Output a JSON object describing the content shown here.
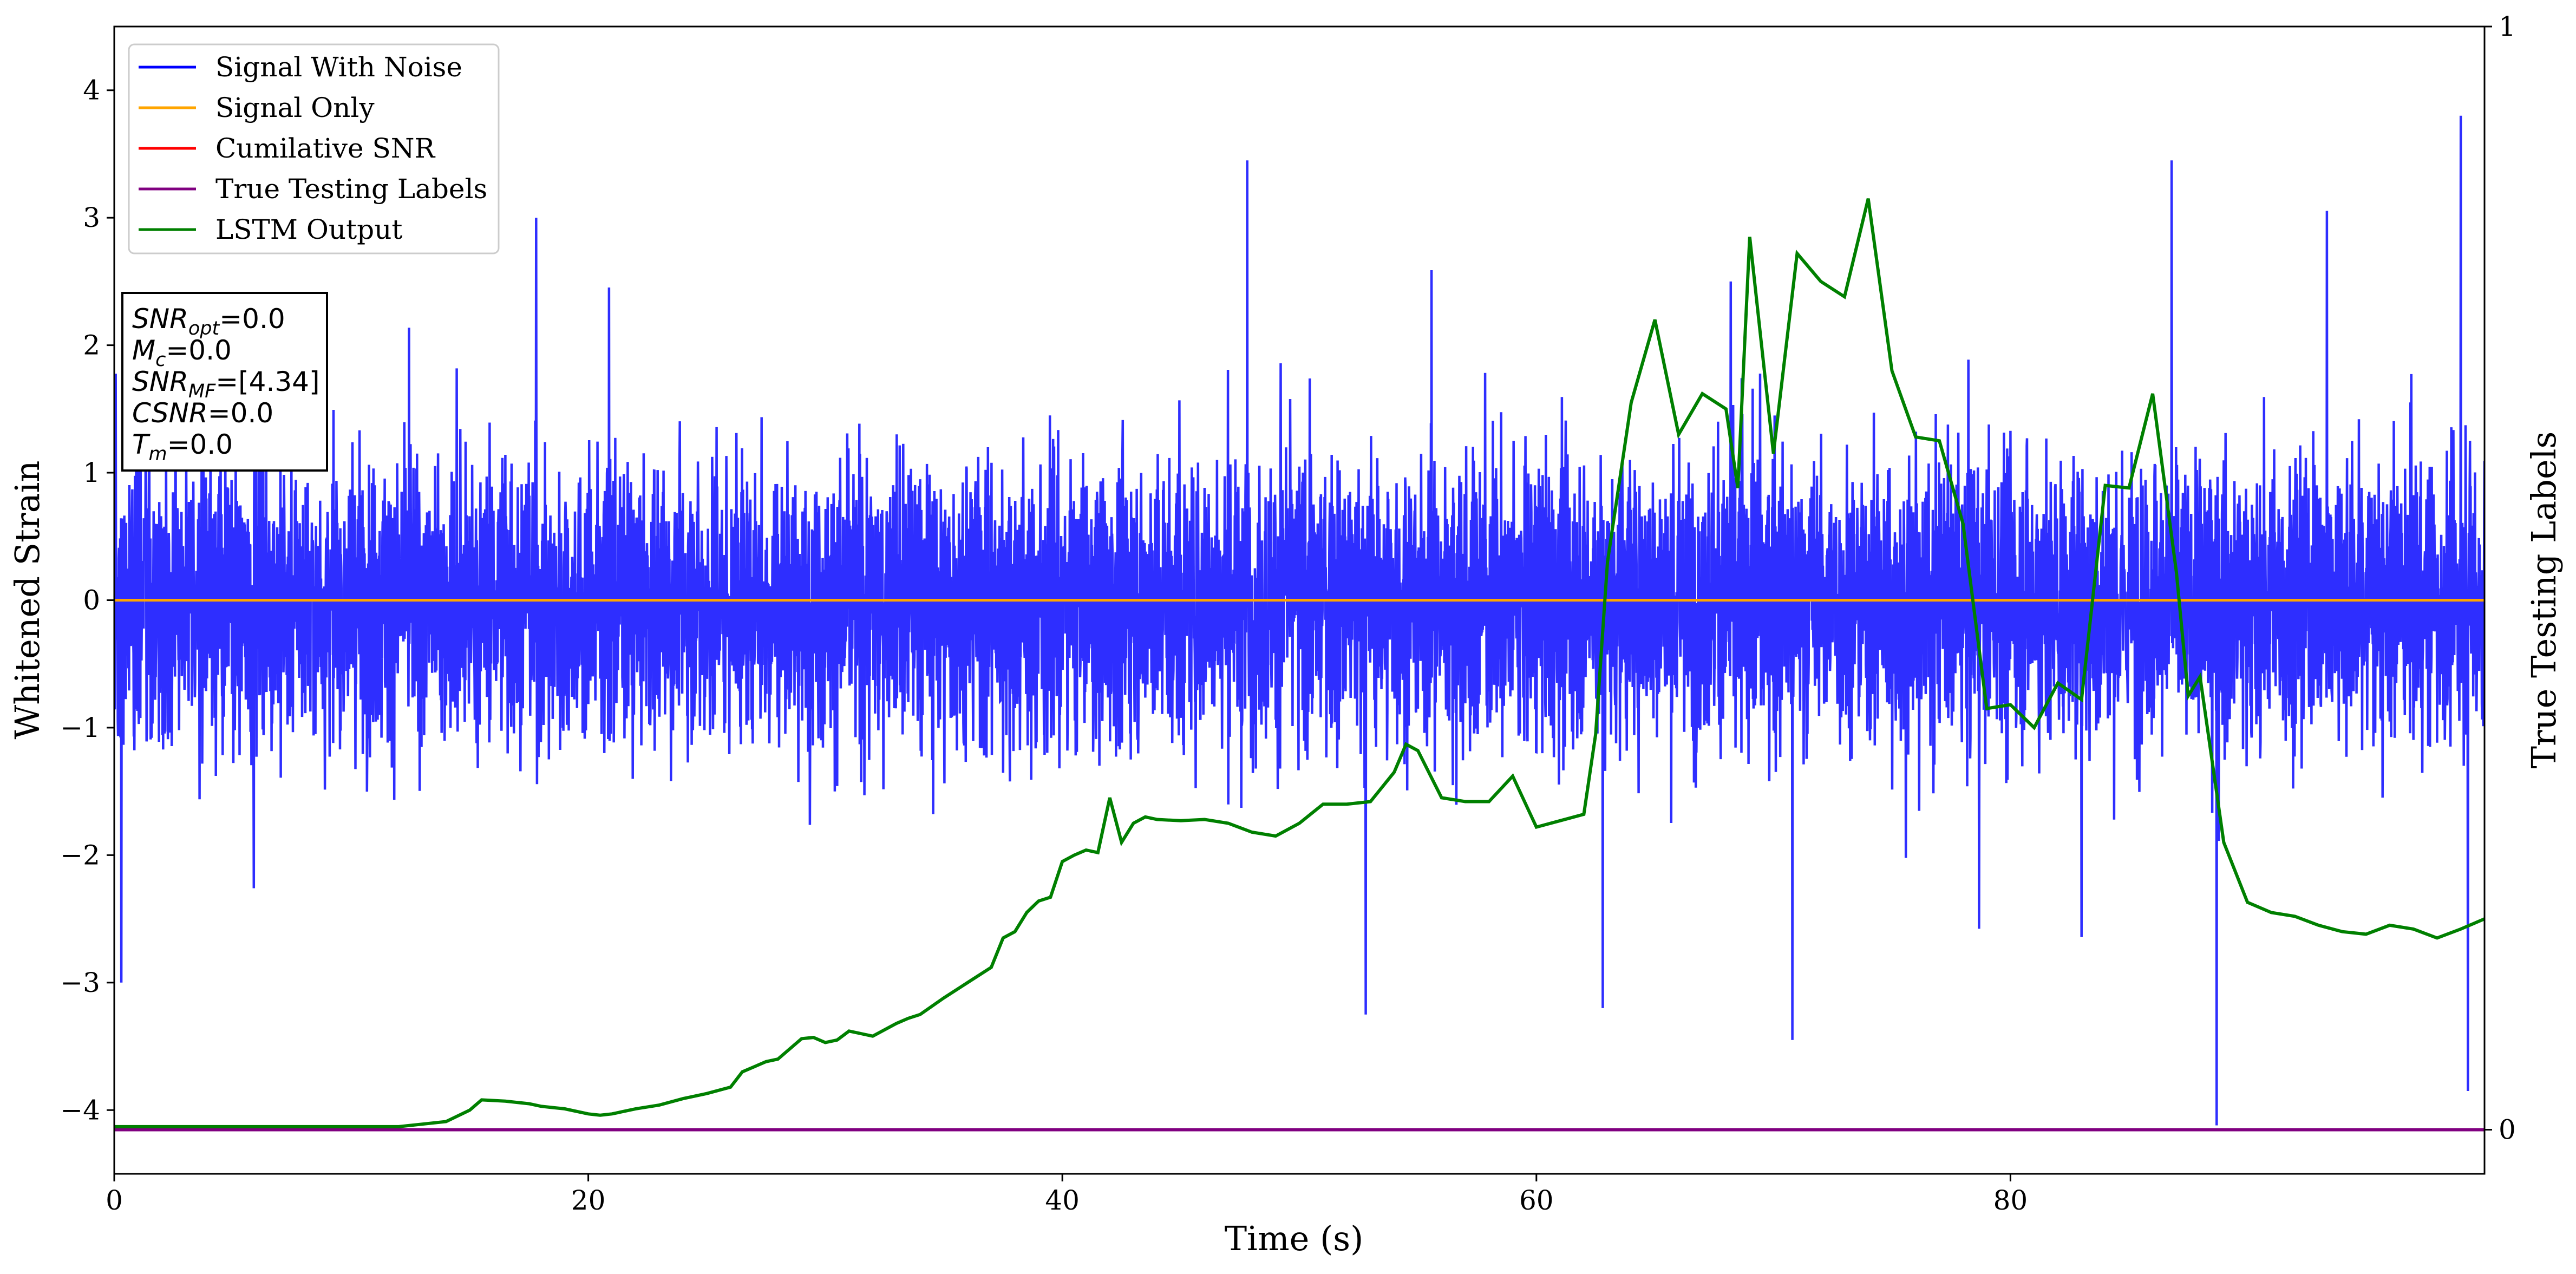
{
  "colors": {
    "noise": "#0000ff",
    "signal": "#ffa500",
    "csnr": "#ff0000",
    "labels": "#800080",
    "lstm": "#008000"
  },
  "chart_data": {
    "type": "line",
    "xlabel": "Time (s)",
    "ylabel": "Whitened Strain",
    "ylabel_right": "True Testing Labels",
    "xlim": [
      0,
      100
    ],
    "ylim": [
      -4.5,
      4.5
    ],
    "ylim_right": [
      -0.04,
      1.0
    ],
    "xticks": [
      0,
      20,
      40,
      60,
      80
    ],
    "yticks": [
      -4,
      -3,
      -2,
      -1,
      0,
      1,
      2,
      3,
      4
    ],
    "yticks_right": [
      0,
      1
    ],
    "grid": false,
    "legend_position": "top-left",
    "series": [
      {
        "name": "Signal With Noise",
        "color": "#0000ff",
        "axis": "left",
        "style": "dense noise, amplitude roughly ±1.5 with spikes to ±3.5",
        "notable_values": [
          {
            "x": 0.3,
            "y": -3.0
          },
          {
            "x": 17.8,
            "y": 3.0
          },
          {
            "x": 47.8,
            "y": 3.45
          },
          {
            "x": 52.8,
            "y": -3.25
          },
          {
            "x": 62.8,
            "y": -3.2
          },
          {
            "x": 68.2,
            "y": 2.5
          },
          {
            "x": 70.8,
            "y": -3.45
          },
          {
            "x": 86.8,
            "y": 3.45
          },
          {
            "x": 88.7,
            "y": -4.12
          },
          {
            "x": 99.0,
            "y": 3.8
          },
          {
            "x": 99.3,
            "y": -3.85
          }
        ]
      },
      {
        "name": "Signal Only",
        "color": "#ffa500",
        "axis": "left",
        "x": [
          0,
          100
        ],
        "y": [
          0,
          0
        ]
      },
      {
        "name": "Cumilative SNR",
        "color": "#ff0000",
        "axis": "left",
        "x": [],
        "y": []
      },
      {
        "name": "True Testing Labels",
        "color": "#800080",
        "axis": "right",
        "x": [
          0,
          100
        ],
        "y": [
          0,
          0
        ]
      },
      {
        "name": "LSTM Output",
        "color": "#008000",
        "axis": "left",
        "x": [
          0,
          5,
          10,
          12,
          13,
          14,
          15,
          15.5,
          16.5,
          17.5,
          18,
          18.5,
          19,
          20,
          20.5,
          21,
          22,
          23,
          24,
          25,
          26,
          26.5,
          27.5,
          28,
          29,
          29.5,
          30,
          30.5,
          31,
          31.5,
          32,
          33,
          33.5,
          34,
          35,
          36,
          37,
          37.5,
          38,
          38.5,
          39,
          39.5,
          40,
          40.5,
          41,
          41.5,
          42,
          42.5,
          43,
          43.5,
          44,
          45,
          46,
          47,
          48,
          49,
          50,
          51,
          52,
          53,
          54,
          54.5,
          55,
          56,
          57,
          58,
          59,
          60,
          61,
          62,
          62.5,
          63,
          64,
          65,
          66,
          67,
          68,
          68.5,
          69,
          70,
          71,
          72,
          73,
          74,
          75,
          76,
          77,
          78,
          79,
          80,
          81,
          82,
          83,
          84,
          85,
          86,
          87,
          87.5,
          88,
          89,
          90,
          91,
          92,
          93,
          94,
          95,
          96,
          97,
          98,
          99,
          100
        ],
        "y": [
          -4.13,
          -4.13,
          -4.13,
          -4.13,
          -4.11,
          -4.09,
          -4.0,
          -3.92,
          -3.93,
          -3.95,
          -3.97,
          -3.98,
          -3.99,
          -4.03,
          -4.04,
          -4.03,
          -3.99,
          -3.96,
          -3.91,
          -3.87,
          -3.82,
          -3.7,
          -3.62,
          -3.6,
          -3.44,
          -3.43,
          -3.47,
          -3.45,
          -3.38,
          -3.4,
          -3.42,
          -3.32,
          -3.28,
          -3.25,
          -3.12,
          -3.0,
          -2.88,
          -2.65,
          -2.6,
          -2.45,
          -2.36,
          -2.33,
          -2.05,
          -2.0,
          -1.96,
          -1.98,
          -1.55,
          -1.9,
          -1.75,
          -1.7,
          -1.72,
          -1.73,
          -1.72,
          -1.75,
          -1.82,
          -1.85,
          -1.75,
          -1.6,
          -1.6,
          -1.58,
          -1.35,
          -1.13,
          -1.18,
          -1.55,
          -1.58,
          -1.58,
          -1.38,
          -1.78,
          -1.73,
          -1.68,
          -1.05,
          0.3,
          1.55,
          2.2,
          1.3,
          1.62,
          1.5,
          0.88,
          2.85,
          1.15,
          2.72,
          2.5,
          2.38,
          3.15,
          1.8,
          1.28,
          1.25,
          0.6,
          -0.85,
          -0.82,
          -1.0,
          -0.65,
          -0.78,
          0.9,
          0.88,
          1.62,
          0.22,
          -0.75,
          -0.6,
          -1.9,
          -2.37,
          -2.45,
          -2.48,
          -2.55,
          -2.6,
          -2.62,
          -2.55,
          -2.58,
          -2.65,
          -2.58,
          -2.5
        ]
      }
    ],
    "annotation_lines": [
      {
        "name": "SNR",
        "sub": "opt",
        "value": "=0.0"
      },
      {
        "name": "M",
        "sub": "c",
        "value": "=0.0"
      },
      {
        "name": "SNR",
        "sub": "MF",
        "value": "=[4.34]"
      },
      {
        "name": "CSNR",
        "sub": "",
        "value": "=0.0"
      },
      {
        "name": "T",
        "sub": "m",
        "value": "=0.0"
      }
    ]
  }
}
